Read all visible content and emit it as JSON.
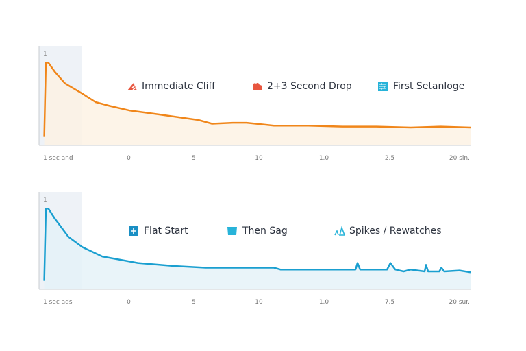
{
  "chart_data": [
    {
      "type": "area",
      "ytick": "1",
      "ylim": [
        0,
        1
      ],
      "xticks": [
        "1 sec and",
        "0",
        "5",
        "10",
        "1.0",
        "2.5",
        "20 sin."
      ],
      "color": "#f0861a",
      "fill": "#fdf1e2",
      "legend": [
        {
          "label": "Immediate Cliff",
          "icon": "cliff-icon",
          "color": "#e8563f"
        },
        {
          "label": "2+3 Second Drop",
          "icon": "cloud-drop-icon",
          "color": "#e8563f"
        },
        {
          "label": "First Setanloge",
          "icon": "grid-icon",
          "color": "#27b3d9"
        }
      ],
      "points": [
        [
          -0.02,
          0.09
        ],
        [
          0,
          0.88
        ],
        [
          0.03,
          0.88
        ],
        [
          0.11,
          0.78
        ],
        [
          0.23,
          0.66
        ],
        [
          0.44,
          0.55
        ],
        [
          0.6,
          0.46
        ],
        [
          0.77,
          0.42
        ],
        [
          1.02,
          0.37
        ],
        [
          1.45,
          0.33
        ],
        [
          1.76,
          0.3
        ],
        [
          2.07,
          0.27
        ],
        [
          2.28,
          0.23
        ],
        [
          2.6,
          0.24
        ],
        [
          2.81,
          0.24
        ],
        [
          3.23,
          0.21
        ],
        [
          3.76,
          0.21
        ],
        [
          4.28,
          0.2
        ],
        [
          4.8,
          0.2
        ],
        [
          5.3,
          0.19
        ],
        [
          5.73,
          0.2
        ],
        [
          6.16,
          0.19
        ]
      ]
    },
    {
      "type": "area",
      "ytick": "1",
      "ylim": [
        0,
        1
      ],
      "xticks": [
        "1 sec ads",
        "0",
        "5",
        "10",
        "1.0",
        "7.5",
        "20 sur."
      ],
      "color": "#1a9fd0",
      "fill": "#e3f1f8",
      "legend": [
        {
          "label": "Flat Start",
          "icon": "plus-square-icon",
          "color": "#1a8fc4"
        },
        {
          "label": "Then Sag",
          "icon": "bucket-icon",
          "color": "#27b3d9"
        },
        {
          "label": "Spikes / Rewatches",
          "icon": "spikes-icon",
          "color": "#27b3d9"
        }
      ],
      "points": [
        [
          -0.02,
          0.09
        ],
        [
          0,
          0.86
        ],
        [
          0.03,
          0.86
        ],
        [
          0.11,
          0.75
        ],
        [
          0.27,
          0.56
        ],
        [
          0.44,
          0.45
        ],
        [
          0.68,
          0.35
        ],
        [
          1.14,
          0.28
        ],
        [
          1.66,
          0.25
        ],
        [
          2.18,
          0.23
        ],
        [
          3.23,
          0.23
        ],
        [
          3.33,
          0.21
        ],
        [
          4.28,
          0.21
        ],
        [
          4.48,
          0.21
        ],
        [
          4.51,
          0.28
        ],
        [
          4.55,
          0.21
        ],
        [
          4.96,
          0.21
        ],
        [
          5.01,
          0.28
        ],
        [
          5.08,
          0.21
        ],
        [
          5.2,
          0.19
        ],
        [
          5.3,
          0.21
        ],
        [
          5.5,
          0.19
        ],
        [
          5.52,
          0.26
        ],
        [
          5.55,
          0.19
        ],
        [
          5.71,
          0.19
        ],
        [
          5.74,
          0.23
        ],
        [
          5.78,
          0.19
        ],
        [
          6.0,
          0.2
        ],
        [
          6.16,
          0.18
        ]
      ]
    }
  ]
}
